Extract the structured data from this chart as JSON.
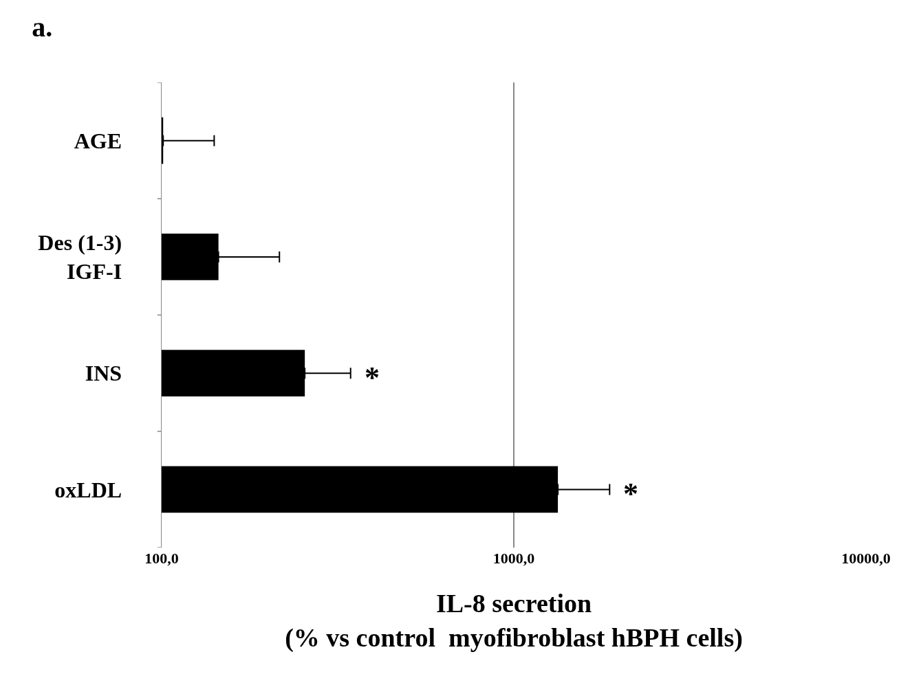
{
  "chart_data": {
    "type": "bar",
    "orientation": "horizontal",
    "title": "a.",
    "xlabel": "IL-8 secretion\n(% vs control  myofibroblast hBPH cells)",
    "categories": [
      "AGE",
      "Des (1-3)\nIGF-I",
      "INS",
      "oxLDL"
    ],
    "values": [
      101,
      145,
      255,
      1334
    ],
    "errors": [
      [
        101,
        141
      ],
      [
        145,
        216
      ],
      [
        255,
        344
      ],
      [
        1334,
        1871
      ]
    ],
    "value_labels": [
      null,
      null,
      "*",
      "*"
    ],
    "color": "#000000",
    "log": "x",
    "xlim": [
      100,
      10000
    ],
    "xticks": [
      {
        "value": 100,
        "label": "100,0"
      },
      {
        "value": 1000,
        "label": "1000,0"
      },
      {
        "value": 10000,
        "label": "10000,0"
      }
    ],
    "grid": "x"
  }
}
